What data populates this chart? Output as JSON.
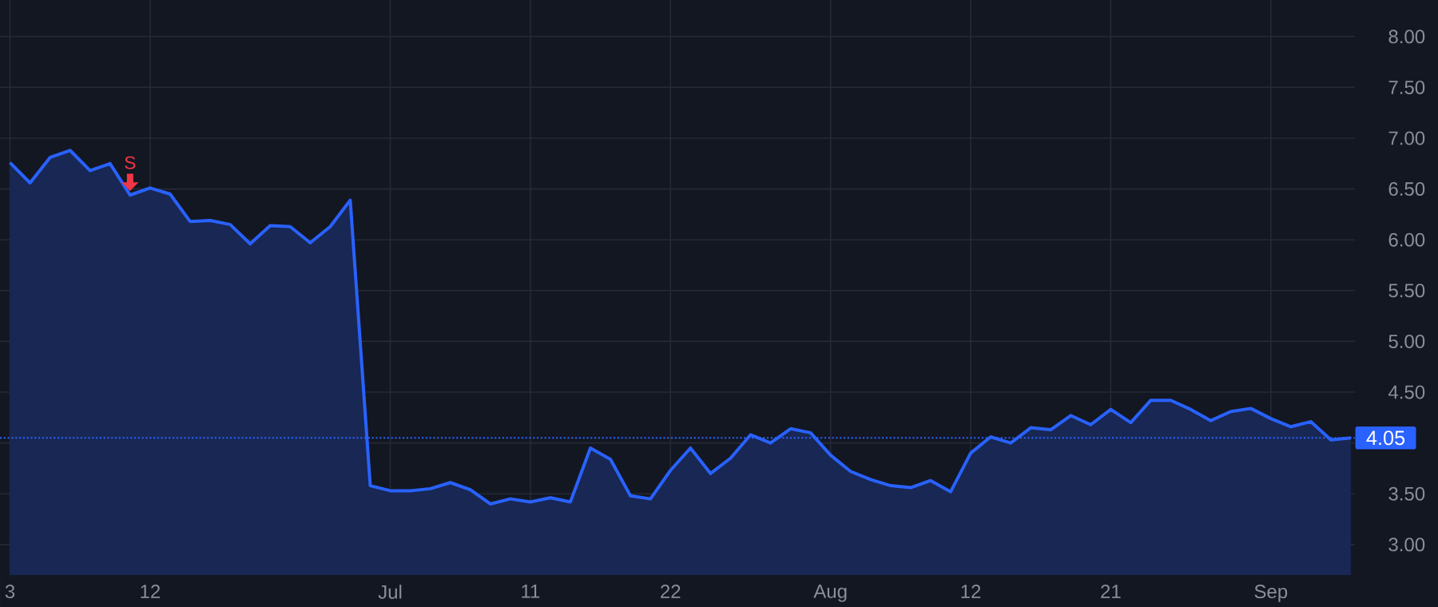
{
  "chart_data": {
    "type": "area",
    "categories": [
      "3",
      null,
      null,
      null,
      null,
      null,
      null,
      "12",
      null,
      null,
      null,
      null,
      null,
      null,
      null,
      null,
      null,
      null,
      null,
      "Jul",
      null,
      null,
      null,
      null,
      null,
      null,
      "11",
      null,
      null,
      null,
      null,
      null,
      null,
      "22",
      null,
      null,
      null,
      null,
      null,
      null,
      null,
      "Aug",
      null,
      null,
      null,
      null,
      null,
      null,
      "12",
      null,
      null,
      null,
      null,
      null,
      null,
      "21",
      null,
      null,
      null,
      null,
      null,
      null,
      null,
      "Sep",
      null,
      null,
      null,
      null
    ],
    "series": [
      {
        "color": "#2962ff",
        "values": [
          6.76,
          6.56,
          6.81,
          6.88,
          6.68,
          6.75,
          6.44,
          6.51,
          6.45,
          6.18,
          6.19,
          6.15,
          5.96,
          6.14,
          6.13,
          5.97,
          6.13,
          6.39,
          3.58,
          3.53,
          3.53,
          3.55,
          3.61,
          3.54,
          3.4,
          3.45,
          3.42,
          3.46,
          3.42,
          3.95,
          3.84,
          3.48,
          3.45,
          3.73,
          3.95,
          3.7,
          3.85,
          4.08,
          4.0,
          4.14,
          4.1,
          3.88,
          3.72,
          3.64,
          3.58,
          3.56,
          3.63,
          3.52,
          3.9,
          4.06,
          4.0,
          4.15,
          4.13,
          4.27,
          4.18,
          4.33,
          4.2,
          4.42,
          4.42,
          4.33,
          4.22,
          4.31,
          4.34,
          4.24,
          4.16,
          4.21,
          4.03,
          4.05
        ]
      }
    ],
    "ylim": [
      2.7,
      8.36
    ],
    "yticks": [
      {
        "value": 3,
        "label": "3.00"
      },
      {
        "value": 3.5,
        "label": "3.50"
      },
      {
        "value": 4,
        "label": null
      },
      {
        "value": 4.5,
        "label": "4.50"
      },
      {
        "value": 5,
        "label": "5.00"
      },
      {
        "value": 5.5,
        "label": "5.50"
      },
      {
        "value": 6,
        "label": "6.00"
      },
      {
        "value": 6.5,
        "label": "6.50"
      },
      {
        "value": 7,
        "label": "7.00"
      },
      {
        "value": 7.5,
        "label": "7.50"
      },
      {
        "value": 8,
        "label": "8.00"
      }
    ],
    "ref_lines": [
      {
        "axis": "y",
        "value": 4.05,
        "label": "4.05",
        "color": "#2962ff",
        "line_style": "dotted"
      }
    ],
    "annotations": [
      {
        "text": "S",
        "y": 6.44
      }
    ],
    "grid": true
  }
}
